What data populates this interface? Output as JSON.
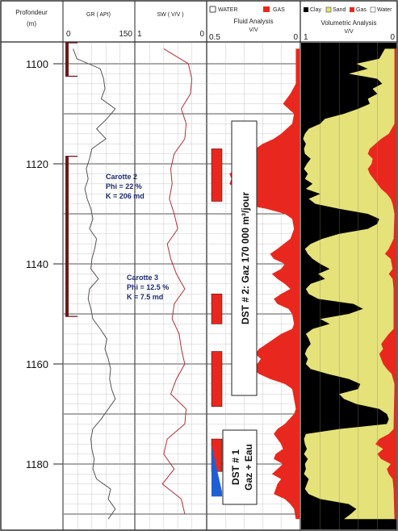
{
  "header": {
    "depth_title": "Profondeur",
    "depth_unit": "(m)",
    "gr_title": "GR ( API)",
    "gr_min": "0",
    "gr_max": "150",
    "sw_title": "SW ( V/V )",
    "sw_left": "1",
    "sw_right": "0",
    "fluid_legend_water": "WATER",
    "fluid_legend_gas": "GAS",
    "fluid_title": "Fluid Analysis",
    "fluid_unit": "V/V",
    "fluid_left": "0.5",
    "fluid_right": "0",
    "vol_legend": [
      "Clay",
      "Sand",
      "Gas",
      "Water"
    ],
    "vol_title": "Volumetric Analysis",
    "vol_unit": "V/V",
    "vol_left": "1",
    "vol_right": "0"
  },
  "annotations": {
    "core2": [
      "Carotte 2",
      "Phi = 22 %",
      "K = 206 md"
    ],
    "core3": [
      "Carotte 3",
      "Phi = 12.5 %",
      "K = 7.5 md"
    ],
    "dst2": "DST # 2: Gaz  170 000  m³/jour",
    "dst1_line1": "DST # 1",
    "dst1_line2": "Gaz + Eau"
  },
  "colors": {
    "gas": "#e8281e",
    "water": "#1f5fd6",
    "sand": "#e5e27a",
    "clay": "#000000",
    "core_bar": "#6b1a1a",
    "gr_curve": "#555555",
    "sw_curve": "#b0303a"
  },
  "chart_data": {
    "type": "well-log",
    "depth_axis": {
      "label": "Profondeur (m)",
      "ticks": [
        1100,
        1120,
        1140,
        1160,
        1180
      ],
      "range": [
        1097,
        1192
      ]
    },
    "core_intervals_m": [
      [
        1095,
        1102.5
      ],
      [
        1118.5,
        1150.5
      ]
    ],
    "tests": [
      {
        "name": "DST # 2",
        "result": "Gaz 170 000 m3/jour",
        "interval_m": [
          1116,
          1170
        ]
      },
      {
        "name": "DST # 1",
        "result": "Gaz + Eau",
        "interval_m": [
          1174,
          1190
        ]
      }
    ],
    "fluid_gas_intervals_m": [
      [
        1117,
        1127.5
      ],
      [
        1146,
        1152
      ],
      [
        1157.5,
        1168.5
      ],
      [
        1175,
        1181.5
      ]
    ],
    "fluid_water_intervals_m": [
      [
        1175,
        1186.5
      ]
    ],
    "gr_api": {
      "range": [
        0,
        150
      ],
      "points": [
        [
          1097,
          20
        ],
        [
          1099,
          28
        ],
        [
          1101,
          78
        ],
        [
          1103,
          85
        ],
        [
          1105,
          88
        ],
        [
          1107,
          80
        ],
        [
          1109,
          110
        ],
        [
          1111,
          92
        ],
        [
          1113,
          70
        ],
        [
          1115,
          90
        ],
        [
          1117,
          60
        ],
        [
          1119,
          55
        ],
        [
          1121,
          48
        ],
        [
          1123,
          52
        ],
        [
          1125,
          45
        ],
        [
          1127,
          50
        ],
        [
          1129,
          58
        ],
        [
          1131,
          62
        ],
        [
          1133,
          55
        ],
        [
          1135,
          70
        ],
        [
          1137,
          66
        ],
        [
          1139,
          60
        ],
        [
          1141,
          58
        ],
        [
          1143,
          74
        ],
        [
          1145,
          55
        ],
        [
          1147,
          52
        ],
        [
          1149,
          58
        ],
        [
          1151,
          62
        ],
        [
          1153,
          78
        ],
        [
          1155,
          92
        ],
        [
          1157,
          88
        ],
        [
          1159,
          95
        ],
        [
          1161,
          100
        ],
        [
          1163,
          98
        ],
        [
          1165,
          102
        ],
        [
          1167,
          110
        ],
        [
          1169,
          95
        ],
        [
          1171,
          80
        ],
        [
          1173,
          62
        ],
        [
          1175,
          58
        ],
        [
          1177,
          60
        ],
        [
          1179,
          65
        ],
        [
          1181,
          62
        ],
        [
          1183,
          70
        ],
        [
          1185,
          100
        ],
        [
          1187,
          95
        ],
        [
          1189,
          110
        ],
        [
          1191,
          95
        ]
      ]
    },
    "sw_vv": {
      "range": [
        1,
        0
      ],
      "points": [
        [
          1097,
          0.6
        ],
        [
          1100,
          0.25
        ],
        [
          1103,
          0.2
        ],
        [
          1106,
          0.22
        ],
        [
          1109,
          0.35
        ],
        [
          1112,
          0.28
        ],
        [
          1115,
          0.3
        ],
        [
          1118,
          0.45
        ],
        [
          1121,
          0.5
        ],
        [
          1124,
          0.48
        ],
        [
          1127,
          0.52
        ],
        [
          1130,
          0.45
        ],
        [
          1133,
          0.4
        ],
        [
          1136,
          0.55
        ],
        [
          1139,
          0.5
        ],
        [
          1142,
          0.42
        ],
        [
          1145,
          0.3
        ],
        [
          1148,
          0.45
        ],
        [
          1151,
          0.48
        ],
        [
          1154,
          0.38
        ],
        [
          1157,
          0.35
        ],
        [
          1160,
          0.3
        ],
        [
          1163,
          0.42
        ],
        [
          1166,
          0.5
        ],
        [
          1169,
          0.28
        ],
        [
          1172,
          0.3
        ],
        [
          1175,
          0.55
        ],
        [
          1178,
          0.6
        ],
        [
          1181,
          0.45
        ],
        [
          1184,
          0.62
        ],
        [
          1187,
          0.35
        ],
        [
          1190,
          0.3
        ]
      ]
    },
    "fluid_gas_vv": {
      "range": [
        0.5,
        0
      ],
      "points": [
        [
          1097,
          0.02
        ],
        [
          1104,
          0.02
        ],
        [
          1106,
          0.05
        ],
        [
          1108,
          0.09
        ],
        [
          1110,
          0.03
        ],
        [
          1112,
          0.04
        ],
        [
          1114,
          0.1
        ],
        [
          1115,
          0.14
        ],
        [
          1116,
          0.2
        ],
        [
          1117,
          0.24
        ],
        [
          1118,
          0.3
        ],
        [
          1119,
          0.34
        ],
        [
          1120,
          0.36
        ],
        [
          1121,
          0.35
        ],
        [
          1122,
          0.38
        ],
        [
          1123,
          0.37
        ],
        [
          1124,
          0.38
        ],
        [
          1125,
          0.35
        ],
        [
          1126,
          0.3
        ],
        [
          1127,
          0.36
        ],
        [
          1128,
          0.32
        ],
        [
          1129,
          0.18
        ],
        [
          1130,
          0.08
        ],
        [
          1131,
          0.04
        ],
        [
          1133,
          0.03
        ],
        [
          1135,
          0.05
        ],
        [
          1137,
          0.12
        ],
        [
          1138,
          0.16
        ],
        [
          1139,
          0.14
        ],
        [
          1140,
          0.08
        ],
        [
          1141,
          0.1
        ],
        [
          1142,
          0.15
        ],
        [
          1143,
          0.12
        ],
        [
          1144,
          0.08
        ],
        [
          1145,
          0.05
        ],
        [
          1146,
          0.1
        ],
        [
          1147,
          0.14
        ],
        [
          1148,
          0.12
        ],
        [
          1149,
          0.06
        ],
        [
          1150,
          0.04
        ],
        [
          1152,
          0.03
        ],
        [
          1153,
          0.04
        ],
        [
          1154,
          0.1
        ],
        [
          1155,
          0.14
        ],
        [
          1156,
          0.18
        ],
        [
          1157,
          0.22
        ],
        [
          1158,
          0.24
        ],
        [
          1159,
          0.21
        ],
        [
          1160,
          0.23
        ],
        [
          1161,
          0.25
        ],
        [
          1162,
          0.22
        ],
        [
          1163,
          0.16
        ],
        [
          1164,
          0.08
        ],
        [
          1165,
          0.04
        ],
        [
          1167,
          0.03
        ],
        [
          1169,
          0.02
        ],
        [
          1170,
          0.03
        ],
        [
          1172,
          0.08
        ],
        [
          1173,
          0.12
        ],
        [
          1174,
          0.14
        ],
        [
          1175,
          0.12
        ],
        [
          1176,
          0.1
        ],
        [
          1177,
          0.09
        ],
        [
          1178,
          0.13
        ],
        [
          1179,
          0.14
        ],
        [
          1180,
          0.09
        ],
        [
          1181,
          0.12
        ],
        [
          1182,
          0.15
        ],
        [
          1183,
          0.1
        ],
        [
          1184,
          0.12
        ],
        [
          1185,
          0.13
        ],
        [
          1186,
          0.14
        ],
        [
          1187,
          0.08
        ],
        [
          1188,
          0.05
        ],
        [
          1189,
          0.03
        ],
        [
          1191,
          0.02
        ]
      ]
    },
    "volumetric_sand_vv": {
      "range": [
        1,
        0
      ],
      "description": "sand/gas fraction measured from right edge; remainder black is clay",
      "points": [
        [
          1097,
          0.12
        ],
        [
          1099,
          0.18
        ],
        [
          1100,
          0.42
        ],
        [
          1101,
          0.3
        ],
        [
          1102,
          0.5
        ],
        [
          1103,
          0.2
        ],
        [
          1104,
          0.15
        ],
        [
          1105,
          0.25
        ],
        [
          1106,
          0.2
        ],
        [
          1107,
          0.3
        ],
        [
          1108,
          0.28
        ],
        [
          1109,
          0.4
        ],
        [
          1110,
          0.55
        ],
        [
          1111,
          0.75
        ],
        [
          1112,
          0.8
        ],
        [
          1113,
          0.92
        ],
        [
          1114,
          0.96
        ],
        [
          1115,
          0.98
        ],
        [
          1116,
          0.95
        ],
        [
          1117,
          0.97
        ],
        [
          1118,
          0.96
        ],
        [
          1119,
          0.9
        ],
        [
          1120,
          0.94
        ],
        [
          1121,
          0.97
        ],
        [
          1122,
          0.93
        ],
        [
          1123,
          0.96
        ],
        [
          1124,
          0.88
        ],
        [
          1125,
          0.95
        ],
        [
          1126,
          0.8
        ],
        [
          1127,
          0.92
        ],
        [
          1128,
          0.85
        ],
        [
          1129,
          0.6
        ],
        [
          1130,
          0.3
        ],
        [
          1131,
          0.18
        ],
        [
          1132,
          0.2
        ],
        [
          1133,
          0.3
        ],
        [
          1134,
          0.6
        ],
        [
          1135,
          0.78
        ],
        [
          1136,
          0.9
        ],
        [
          1137,
          0.96
        ],
        [
          1138,
          0.93
        ],
        [
          1139,
          0.88
        ],
        [
          1140,
          0.8
        ],
        [
          1141,
          0.7
        ],
        [
          1142,
          0.82
        ],
        [
          1143,
          0.75
        ],
        [
          1144,
          0.9
        ],
        [
          1145,
          0.95
        ],
        [
          1146,
          0.92
        ],
        [
          1147,
          0.82
        ],
        [
          1148,
          0.45
        ],
        [
          1149,
          0.35
        ],
        [
          1150,
          0.5
        ],
        [
          1151,
          0.8
        ],
        [
          1152,
          0.7
        ],
        [
          1153,
          0.88
        ],
        [
          1154,
          0.95
        ],
        [
          1155,
          0.92
        ],
        [
          1156,
          0.9
        ],
        [
          1157,
          0.94
        ],
        [
          1158,
          0.96
        ],
        [
          1159,
          0.93
        ],
        [
          1160,
          0.95
        ],
        [
          1161,
          0.9
        ],
        [
          1162,
          0.72
        ],
        [
          1163,
          0.5
        ],
        [
          1164,
          0.38
        ],
        [
          1165,
          0.4
        ],
        [
          1166,
          0.6
        ],
        [
          1167,
          0.55
        ],
        [
          1168,
          0.42
        ],
        [
          1169,
          0.18
        ],
        [
          1170,
          0.1
        ],
        [
          1171,
          0.08
        ],
        [
          1172,
          0.1
        ],
        [
          1173,
          0.6
        ],
        [
          1174,
          0.95
        ],
        [
          1175,
          0.97
        ],
        [
          1176,
          0.96
        ],
        [
          1177,
          0.94
        ],
        [
          1178,
          0.97
        ],
        [
          1179,
          0.93
        ],
        [
          1180,
          0.96
        ],
        [
          1181,
          0.95
        ],
        [
          1182,
          0.97
        ],
        [
          1183,
          0.92
        ],
        [
          1184,
          0.94
        ],
        [
          1185,
          0.96
        ],
        [
          1186,
          0.92
        ],
        [
          1187,
          0.8
        ],
        [
          1188,
          0.5
        ],
        [
          1189,
          0.42
        ],
        [
          1190,
          0.48
        ],
        [
          1191,
          0.55
        ]
      ]
    },
    "volumetric_gas_vv": {
      "range": [
        1,
        0
      ],
      "points": [
        [
          1097,
          0.02
        ],
        [
          1112,
          0.02
        ],
        [
          1113,
          0.05
        ],
        [
          1114,
          0.08
        ],
        [
          1115,
          0.16
        ],
        [
          1116,
          0.22
        ],
        [
          1117,
          0.28
        ],
        [
          1118,
          0.3
        ],
        [
          1119,
          0.25
        ],
        [
          1120,
          0.26
        ],
        [
          1121,
          0.3
        ],
        [
          1122,
          0.28
        ],
        [
          1123,
          0.24
        ],
        [
          1124,
          0.2
        ],
        [
          1125,
          0.16
        ],
        [
          1126,
          0.1
        ],
        [
          1127,
          0.06
        ],
        [
          1128,
          0.04
        ],
        [
          1130,
          0.02
        ],
        [
          1135,
          0.03
        ],
        [
          1137,
          0.08
        ],
        [
          1138,
          0.12
        ],
        [
          1139,
          0.06
        ],
        [
          1141,
          0.04
        ],
        [
          1142,
          0.08
        ],
        [
          1143,
          0.04
        ],
        [
          1145,
          0.03
        ],
        [
          1153,
          0.03
        ],
        [
          1154,
          0.08
        ],
        [
          1155,
          0.12
        ],
        [
          1156,
          0.16
        ],
        [
          1157,
          0.14
        ],
        [
          1158,
          0.18
        ],
        [
          1159,
          0.16
        ],
        [
          1160,
          0.14
        ],
        [
          1161,
          0.1
        ],
        [
          1162,
          0.05
        ],
        [
          1164,
          0.02
        ],
        [
          1173,
          0.03
        ],
        [
          1174,
          0.08
        ],
        [
          1175,
          0.18
        ],
        [
          1176,
          0.22
        ],
        [
          1177,
          0.14
        ],
        [
          1178,
          0.2
        ],
        [
          1179,
          0.16
        ],
        [
          1180,
          0.06
        ],
        [
          1181,
          0.1
        ],
        [
          1182,
          0.08
        ],
        [
          1183,
          0.04
        ],
        [
          1185,
          0.03
        ],
        [
          1191,
          0.02
        ]
      ]
    }
  }
}
